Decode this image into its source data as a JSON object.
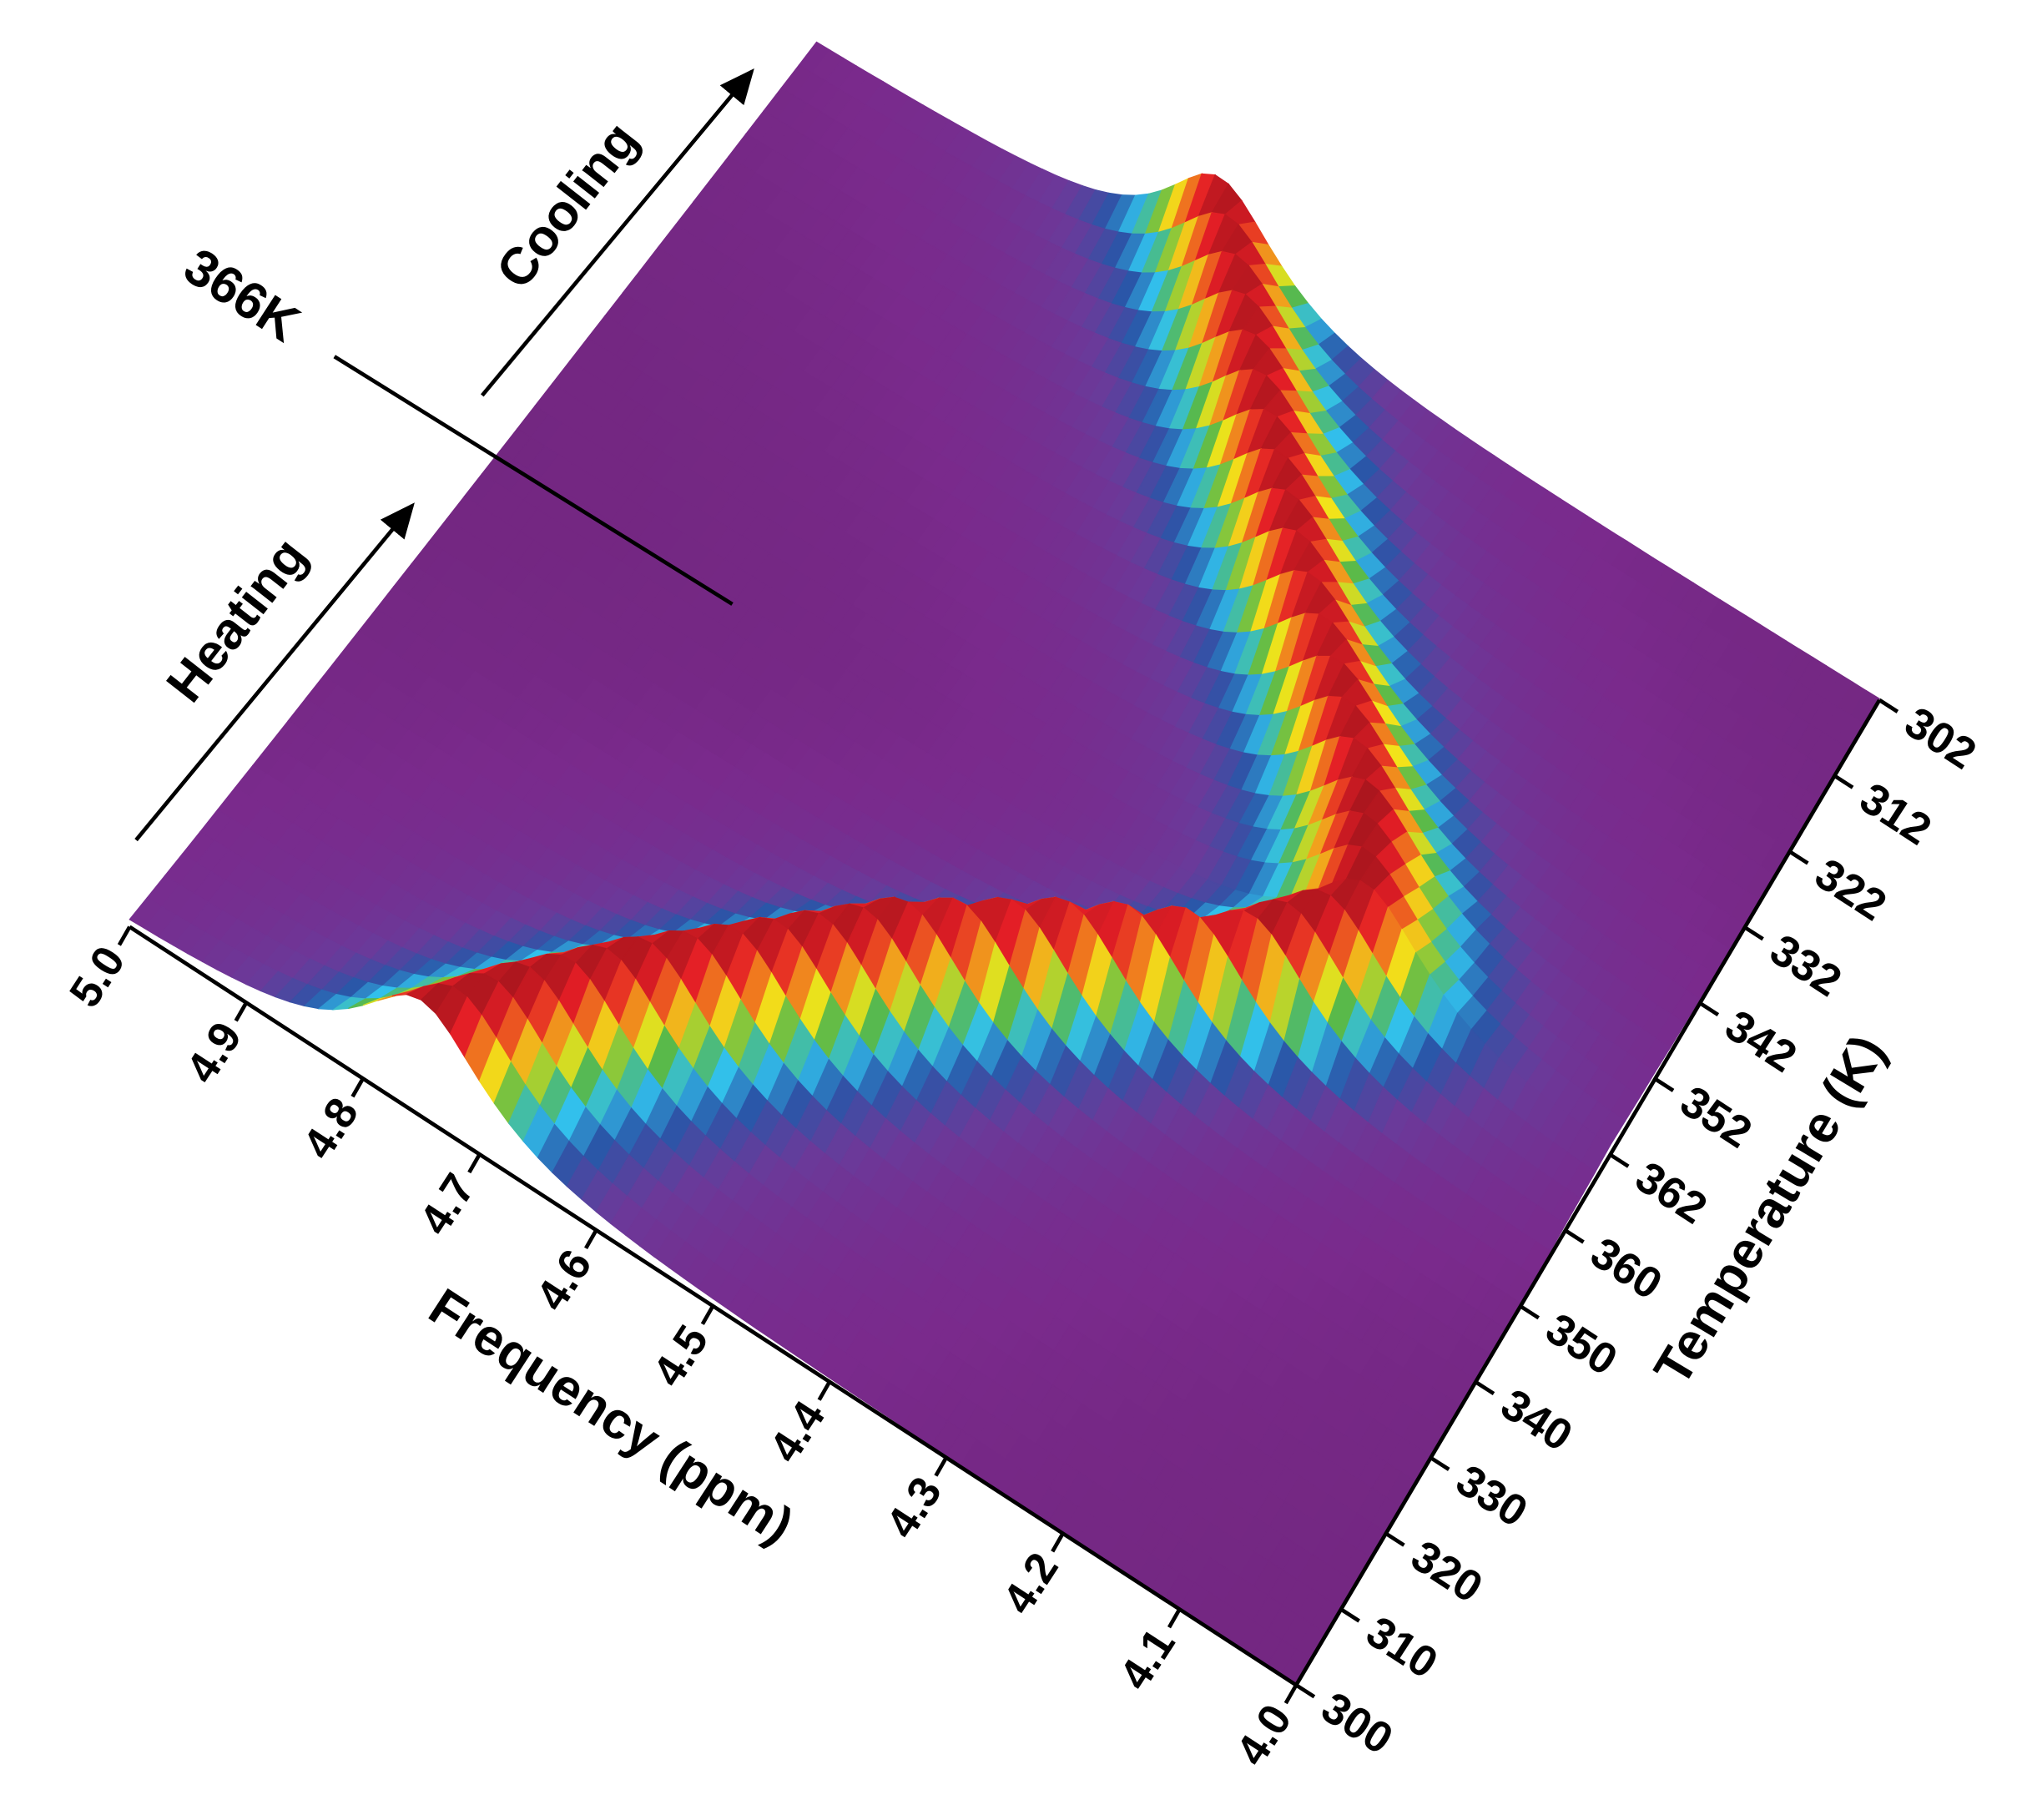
{
  "chart_data": {
    "type": "surface3d",
    "annotations": [
      "366K",
      "Heating",
      "Cooling"
    ],
    "x_label": "Frequency (ppm)",
    "y_label": "Temperature (K)",
    "xlim": [
      5.0,
      4.0
    ],
    "xticks": [
      {
        "value": 5,
        "label": "5.0"
      },
      4.9,
      4.8,
      4.7,
      4.6,
      4.5,
      4.4,
      4.3,
      4.2,
      4.1,
      {
        "value": 4,
        "label": "4.0"
      }
    ],
    "categories": [
      "300",
      "310",
      "320",
      "330",
      "340",
      "350",
      "360",
      "362",
      "352",
      "342",
      "332",
      "322",
      "312",
      "302"
    ],
    "series": [
      {
        "values": [
          4.75,
          4.7,
          4.64,
          4.57,
          4.5,
          4.4,
          4.28,
          4.22,
          4.26,
          4.33,
          4.41,
          4.48,
          4.55,
          4.62
        ]
      }
    ],
    "colormap": [
      "#5c1d5c",
      "#7a2a8c",
      "#6a3a9a",
      "#2a56a8",
      "#32c0ec",
      "#58b94a",
      "#f2e41a",
      "#f07a1e",
      "#e41e26",
      "#a0141c"
    ]
  }
}
